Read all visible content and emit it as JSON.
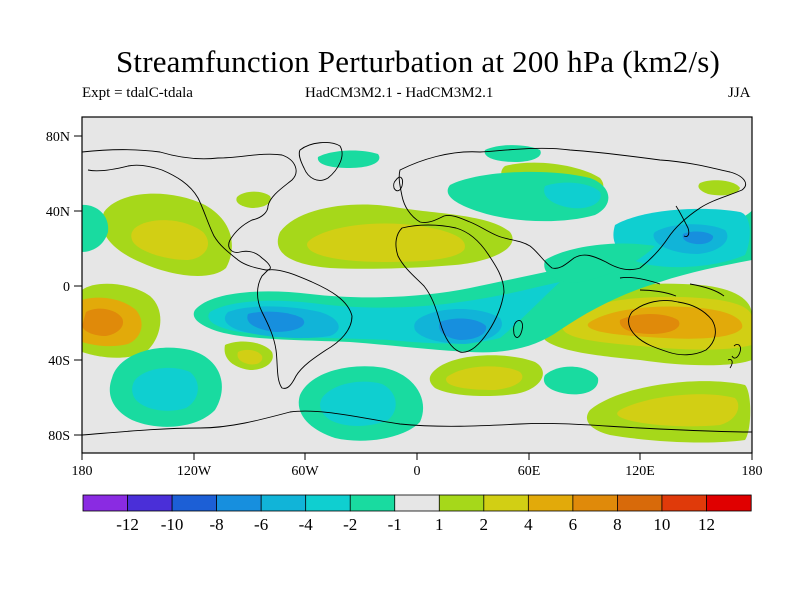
{
  "title": "Streamfunction Perturbation at 200 hPa (km2/s)",
  "subtitle_left": "Expt = tdalC-tdala",
  "subtitle_center": "HadCM3M2.1 - HadCM3M2.1",
  "subtitle_right": "JJA",
  "map": {
    "lat_ticks": [
      "80N",
      "40N",
      "0",
      "40S",
      "80S"
    ],
    "lon_ticks": [
      "180",
      "120W",
      "60W",
      "0",
      "60E",
      "120E",
      "180"
    ]
  },
  "colorbar": {
    "labels": [
      "-12",
      "-10",
      "-8",
      "-6",
      "-4",
      "-2",
      "-1",
      "1",
      "2",
      "4",
      "6",
      "8",
      "10",
      "12"
    ],
    "colors": [
      "#8a2be2",
      "#4a2fd8",
      "#1c5fd6",
      "#178fde",
      "#11b4d8",
      "#0fcfd0",
      "#19dba0",
      "#e6e6e6",
      "#a6d81a",
      "#d2cf14",
      "#e2aa0a",
      "#e08a0a",
      "#d86a0a",
      "#e03a0a",
      "#e00000"
    ]
  },
  "colors": {
    "background": "#e6e6e6",
    "coast": "#000000"
  }
}
